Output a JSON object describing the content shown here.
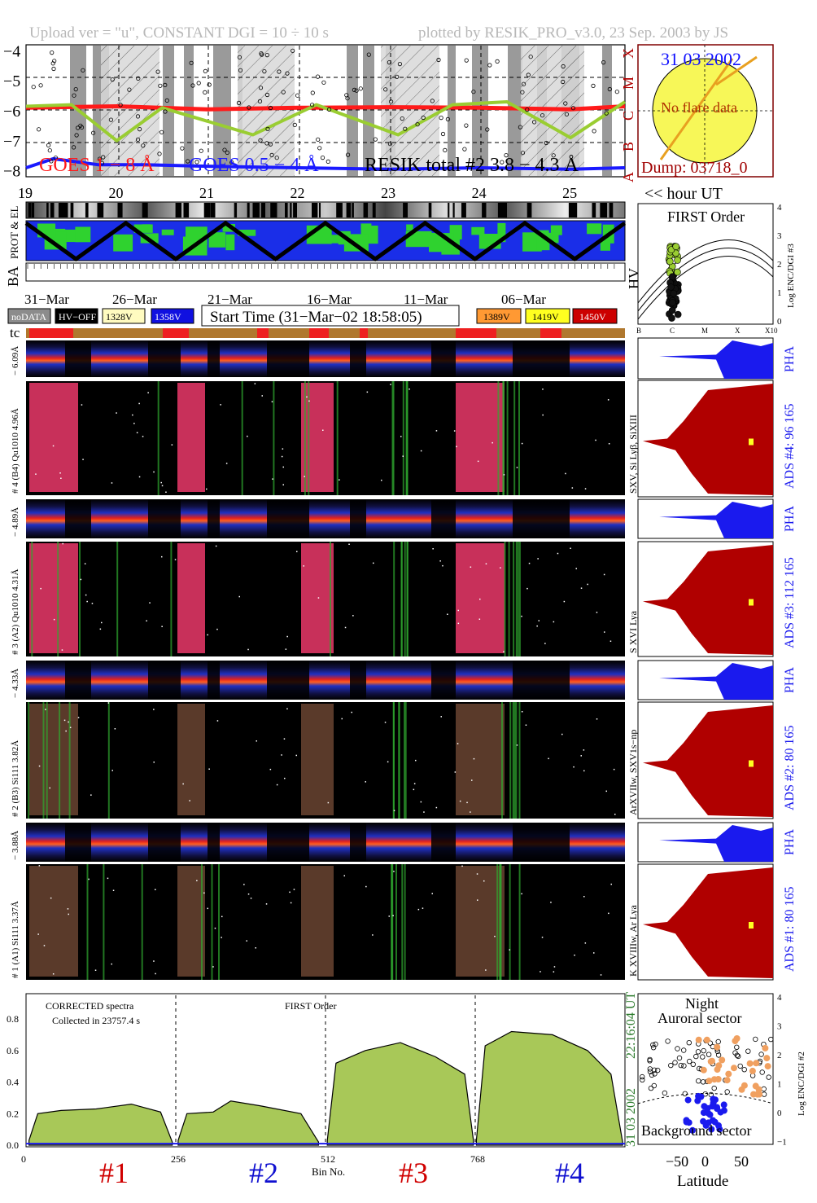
{
  "header": {
    "left": "Upload ver = \"u\", CONSTANT  DGI =  10 ÷  10 s",
    "right": "plotted by RESIK_PRO_v3.0, 23 Sep. 2003 by JS"
  },
  "goes_panel": {
    "y_ticks": [
      "−4",
      "−5",
      "−6",
      "−7",
      "−8"
    ],
    "class_letters": [
      "X",
      "M",
      "C",
      "B",
      "A"
    ],
    "legend": [
      "GOES 1 − 8 Å",
      "GOES 0.5 − 4 Å",
      "RESIK total #2  3.8 −  4.3 Å"
    ],
    "hour_ticks": [
      "19",
      "20",
      "21",
      "22",
      "23",
      "24",
      "25"
    ],
    "hour_label": "<< hour UT",
    "colors": {
      "goes_long": "#ff1a1a",
      "goes_short": "#1a1aff",
      "resik": "#9acd32"
    }
  },
  "sun_panel": {
    "date": "31 03 2002",
    "note": "No flare data",
    "dump": "Dump: 03718_0"
  },
  "particle_panel": {
    "left_labels": [
      "PROT & EL",
      "BA"
    ],
    "right_label": "HV"
  },
  "date_row": {
    "dates": [
      "31−Mar",
      "26−Mar",
      "21−Mar",
      "16−Mar",
      "11−Mar",
      "06−Mar"
    ]
  },
  "legend_row": {
    "left": [
      {
        "label": "noDATA",
        "bg": "#8c8c8c",
        "fg": "#ffffff"
      },
      {
        "label": "HV−OFF",
        "bg": "#000000",
        "fg": "#ffffff"
      },
      {
        "label": "1328V",
        "bg": "#fffbc0",
        "fg": "#000000"
      },
      {
        "label": "1358V",
        "bg": "#1010e0",
        "fg": "#ffffff"
      }
    ],
    "start_time": "Start Time (31−Mar−02 18:58:05)",
    "right": [
      {
        "label": "1389V",
        "bg": "#ff9933",
        "fg": "#000000"
      },
      {
        "label": "1419V",
        "bg": "#ffff20",
        "fg": "#000000"
      },
      {
        "label": "1450V",
        "bg": "#cc0000",
        "fg": "#ffffff"
      }
    ]
  },
  "first_order_panel": {
    "title": "FIRST Order",
    "y_label": "Log ENC/DGI #3",
    "y_ticks": [
      "4",
      "3",
      "2",
      "1",
      "0"
    ],
    "x_ticks": [
      "B",
      "C",
      "M",
      "X",
      "X10"
    ]
  },
  "tc_label": "tc",
  "channels": [
    {
      "pha_label": "− 6.09Å",
      "main_label": "# 4 (B4) Qu1010 4.96Å",
      "lines": "SXV, Si Lyβ, SiXIII",
      "ads": "ADS #4:   96 165",
      "pha": "PHA"
    },
    {
      "pha_label": "− 4.89Å",
      "main_label": "# 3 (A2) Qu1010  4.31Å",
      "lines": "S XVI Lya",
      "ads": "ADS #3:   112 165",
      "pha": "PHA"
    },
    {
      "pha_label": "− 4.33Å",
      "main_label": "# 2 (B3) Si111  3.82Å",
      "lines": "ArXVIIw, SXV1s−np",
      "ads": "ADS #2:   80 165",
      "pha": "PHA"
    },
    {
      "pha_label": "− 3.88Å",
      "main_label": "# 1 (A1) Si111  3.37Å",
      "lines": "K XVIIIw, Ar Lya",
      "ads": "ADS #1:   80 165",
      "pha": "PHA"
    }
  ],
  "spectrum_panel": {
    "note1": "CORRECTED spectra",
    "note2": "Collected in 23757.4 s",
    "note3": "FIRST Order",
    "y_ticks": [
      "0.0",
      "0.2",
      "0.4",
      "0.6",
      "0.8"
    ],
    "x_ticks": [
      "0",
      "256",
      "512",
      "768"
    ],
    "x_label": "Bin No.",
    "timestamp_time": "22:16:04 UT",
    "timestamp_date": "31 03 2002",
    "channel_ids": [
      "#1",
      "#2",
      "#3",
      "#4"
    ]
  },
  "latitude_panel": {
    "title1": "Night",
    "title2": "Auroral sector",
    "bottom": "Background sector",
    "y_label": "Log ENC/DGI #2",
    "y_ticks": [
      "4",
      "3",
      "2",
      "1",
      "0",
      "−1"
    ],
    "x_ticks": [
      "−50",
      "0",
      "50"
    ],
    "x_label": "Latitude"
  },
  "chart_data": [
    {
      "type": "line",
      "title": "",
      "xlabel": "hour UT",
      "ylabel": "",
      "xlim": [
        19,
        25.6
      ],
      "ylim": [
        -8.2,
        -3.8
      ],
      "x_ticks": [
        19,
        20,
        21,
        22,
        23,
        24,
        25
      ],
      "y_ticks": [
        -4,
        -5,
        -6,
        -7,
        -8
      ],
      "series": [
        {
          "name": "GOES 1 − 8 Å",
          "x": [
            19,
            20,
            21,
            22,
            23,
            24,
            25,
            25.6
          ],
          "values": [
            -5.9,
            -5.85,
            -5.95,
            -5.9,
            -5.88,
            -5.9,
            -5.95,
            -5.85
          ]
        },
        {
          "name": "GOES 0.5 − 4 Å",
          "x": [
            19,
            19.3,
            19.8,
            20.3,
            21,
            22,
            23,
            24,
            25,
            25.6
          ],
          "values": [
            -7.9,
            -7.6,
            -7.8,
            -7.8,
            -7.85,
            -7.9,
            -7.95,
            -7.9,
            -7.95,
            -7.9
          ]
        },
        {
          "name": "RESIK total #2  3.8 −  4.3 Å",
          "x": [
            19,
            19.5,
            20,
            20.5,
            21.5,
            22.2,
            23.1,
            23.7,
            24.3,
            25,
            25.6
          ],
          "values": [
            -5.85,
            -5.8,
            -7.0,
            -5.9,
            -6.8,
            -5.8,
            -6.8,
            -5.8,
            -5.7,
            -6.9,
            -5.7
          ]
        }
      ]
    },
    {
      "type": "area",
      "title": "",
      "xlabel": "Bin No.",
      "ylabel": "",
      "xlim": [
        0,
        1024
      ],
      "ylim": [
        0,
        0.95
      ],
      "x_ticks": [
        0,
        256,
        512,
        768
      ],
      "y_ticks": [
        0,
        0.2,
        0.4,
        0.6,
        0.8
      ],
      "series": [
        {
          "name": "#1",
          "x": [
            5,
            20,
            60,
            120,
            180,
            230,
            250
          ],
          "values": [
            0.03,
            0.2,
            0.22,
            0.23,
            0.26,
            0.21,
            0.02
          ]
        },
        {
          "name": "#2",
          "x": [
            260,
            275,
            320,
            350,
            400,
            470,
            500
          ],
          "values": [
            0.03,
            0.2,
            0.21,
            0.28,
            0.25,
            0.2,
            0.02
          ]
        },
        {
          "name": "#3",
          "x": [
            515,
            530,
            580,
            640,
            700,
            750,
            765
          ],
          "values": [
            0.03,
            0.52,
            0.6,
            0.65,
            0.56,
            0.45,
            0.03
          ]
        },
        {
          "name": "#4",
          "x": [
            770,
            785,
            830,
            900,
            960,
            1000,
            1020
          ],
          "values": [
            0.03,
            0.63,
            0.72,
            0.7,
            0.6,
            0.45,
            0.02
          ]
        }
      ]
    }
  ]
}
